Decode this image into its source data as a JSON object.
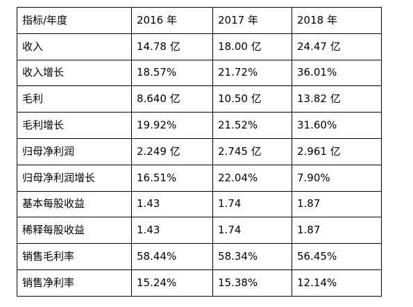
{
  "table": {
    "headers": [
      "指标/年度",
      "2016 年",
      "2017 年",
      "2018 年"
    ],
    "rows": [
      [
        "收入",
        "14.78 亿",
        "18.00 亿",
        "24.47 亿"
      ],
      [
        "收入增长",
        "18.57%",
        "21.72%",
        "36.01%"
      ],
      [
        "毛利",
        "8.640 亿",
        "10.50 亿",
        "13.82 亿"
      ],
      [
        "毛利增长",
        "19.92%",
        "21.52%",
        "31.60%"
      ],
      [
        "归母净利润",
        "2.249 亿",
        "2.745 亿",
        "2.961 亿"
      ],
      [
        "归母净利润增长",
        "16.51%",
        "22.04%",
        "7.90%"
      ],
      [
        "基本每股收益",
        "1.43",
        "1.74",
        "1.87"
      ],
      [
        "稀释每股收益",
        "1.43",
        "1.74",
        "1.87"
      ],
      [
        "销售毛利率",
        "58.44%",
        "58.34%",
        "56.45%"
      ],
      [
        "销售净利率",
        "15.24%",
        "15.38%",
        "12.14%"
      ]
    ]
  }
}
